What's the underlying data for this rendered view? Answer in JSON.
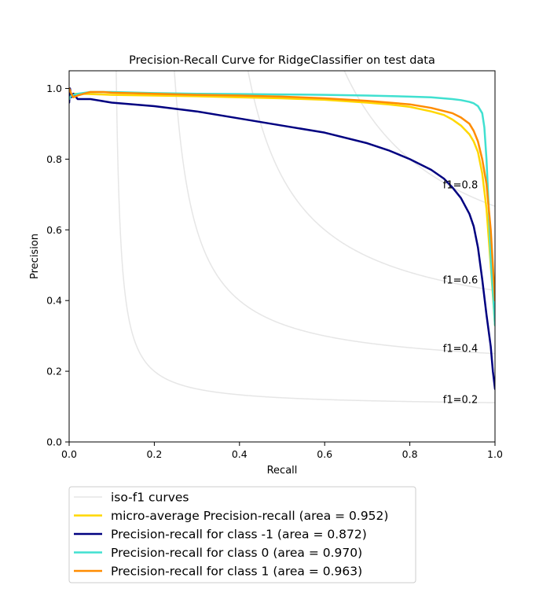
{
  "chart_data": {
    "type": "line",
    "title": "Precision-Recall Curve for RidgeClassifier on test data",
    "xlabel": "Recall",
    "ylabel": "Precision",
    "xlim": [
      0.0,
      1.0
    ],
    "ylim": [
      0.0,
      1.05
    ],
    "xticks": [
      0.0,
      0.2,
      0.4,
      0.6,
      0.8,
      1.0
    ],
    "xtick_labels": [
      "0.0",
      "0.2",
      "0.4",
      "0.6",
      "0.8",
      "1.0"
    ],
    "yticks": [
      0.0,
      0.2,
      0.4,
      0.6,
      0.8,
      1.0
    ],
    "ytick_labels": [
      "0.0",
      "0.2",
      "0.4",
      "0.6",
      "0.8",
      "1.0"
    ],
    "grid": false,
    "legend_placement": "below-left",
    "iso_f1": {
      "values": [
        0.2,
        0.4,
        0.6,
        0.8
      ],
      "labels": [
        "f1=0.2",
        "f1=0.4",
        "f1=0.6",
        "f1=0.8"
      ],
      "label_x": 0.9,
      "color": "#e6e6e6"
    },
    "series": [
      {
        "name": "micro-average Precision-recall (area = 0.952)",
        "color": "#ffd700",
        "x": [
          0.0,
          0.002,
          0.01,
          0.03,
          0.1,
          0.2,
          0.3,
          0.4,
          0.5,
          0.6,
          0.7,
          0.75,
          0.8,
          0.85,
          0.88,
          0.9,
          0.92,
          0.94,
          0.95,
          0.96,
          0.97,
          0.98,
          0.99,
          1.0
        ],
        "y": [
          1.0,
          0.98,
          0.985,
          0.985,
          0.982,
          0.98,
          0.978,
          0.975,
          0.972,
          0.968,
          0.96,
          0.955,
          0.948,
          0.935,
          0.925,
          0.912,
          0.895,
          0.87,
          0.85,
          0.82,
          0.76,
          0.66,
          0.5,
          0.33
        ]
      },
      {
        "name": "Precision-recall for class -1 (area = 0.872)",
        "color": "#000080",
        "x": [
          0.0,
          0.002,
          0.005,
          0.01,
          0.02,
          0.05,
          0.1,
          0.2,
          0.3,
          0.4,
          0.5,
          0.6,
          0.7,
          0.75,
          0.8,
          0.85,
          0.88,
          0.9,
          0.92,
          0.94,
          0.95,
          0.96,
          0.97,
          0.98,
          0.99,
          0.995,
          1.0
        ],
        "y": [
          0.96,
          1.0,
          0.975,
          0.985,
          0.97,
          0.97,
          0.96,
          0.95,
          0.935,
          0.915,
          0.895,
          0.875,
          0.845,
          0.825,
          0.8,
          0.77,
          0.745,
          0.72,
          0.69,
          0.645,
          0.61,
          0.55,
          0.46,
          0.36,
          0.27,
          0.2,
          0.15
        ]
      },
      {
        "name": "Precision-recall for class 0 (area = 0.970)",
        "color": "#40e0d0",
        "x": [
          0.0,
          0.005,
          0.02,
          0.05,
          0.1,
          0.2,
          0.3,
          0.4,
          0.5,
          0.6,
          0.7,
          0.8,
          0.85,
          0.9,
          0.92,
          0.94,
          0.95,
          0.96,
          0.97,
          0.975,
          0.98,
          0.985,
          0.99,
          1.0
        ],
        "y": [
          0.97,
          0.98,
          0.985,
          0.99,
          0.99,
          0.987,
          0.985,
          0.984,
          0.983,
          0.982,
          0.98,
          0.977,
          0.975,
          0.97,
          0.967,
          0.962,
          0.958,
          0.95,
          0.93,
          0.89,
          0.8,
          0.67,
          0.52,
          0.33
        ]
      },
      {
        "name": "Precision-recall for class 1 (area = 0.963)",
        "color": "#ff8c00",
        "x": [
          0.0,
          0.005,
          0.01,
          0.02,
          0.05,
          0.08,
          0.1,
          0.2,
          0.3,
          0.4,
          0.5,
          0.6,
          0.7,
          0.8,
          0.85,
          0.9,
          0.92,
          0.94,
          0.95,
          0.96,
          0.97,
          0.98,
          0.99,
          1.0
        ],
        "y": [
          1.0,
          0.985,
          0.975,
          0.98,
          0.99,
          0.99,
          0.988,
          0.985,
          0.982,
          0.98,
          0.977,
          0.972,
          0.965,
          0.955,
          0.945,
          0.93,
          0.918,
          0.9,
          0.88,
          0.85,
          0.8,
          0.73,
          0.6,
          0.4
        ]
      }
    ],
    "legend": [
      {
        "label": "iso-f1 curves",
        "color": "#e6e6e6"
      },
      {
        "label": "micro-average Precision-recall (area = 0.952)",
        "color": "#ffd700"
      },
      {
        "label": "Precision-recall for class -1 (area = 0.872)",
        "color": "#000080"
      },
      {
        "label": "Precision-recall for class 0 (area = 0.970)",
        "color": "#40e0d0"
      },
      {
        "label": "Precision-recall for class 1 (area = 0.963)",
        "color": "#ff8c00"
      }
    ]
  }
}
